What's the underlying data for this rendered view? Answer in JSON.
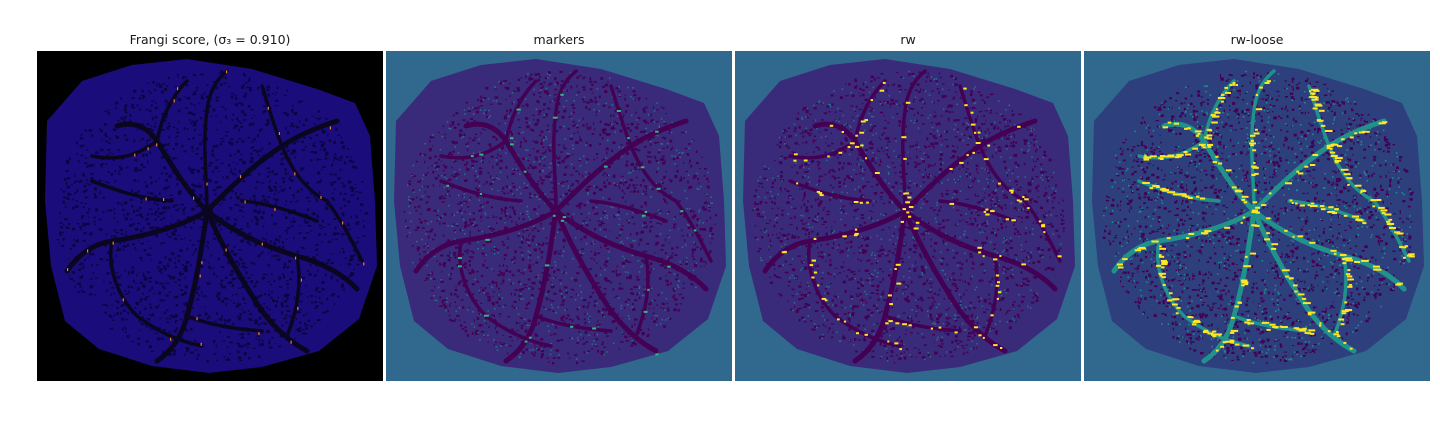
{
  "figure": {
    "panels": [
      {
        "title": "Frangi score, (σ₃ = 0.910)",
        "background_color": "#000000",
        "region_color": "#1a0c7a",
        "speckle_color": "#0a0440",
        "vessel_color": "#0b0620",
        "highlight_color": "#e8803a"
      },
      {
        "title": "markers",
        "background_color": "#31688e",
        "region_color": "#3a2a7a",
        "speckle_color": "#440154",
        "vessel_color": "#440154",
        "highlight_color": "#35b779"
      },
      {
        "title": "rw",
        "background_color": "#31688e",
        "region_color": "#3a2a7a",
        "speckle_color": "#440154",
        "vessel_color": "#440154",
        "highlight_color": "#fde725"
      },
      {
        "title": "rw-loose",
        "background_color": "#31688e",
        "region_color": "#2d3f7d",
        "speckle_color": "#440154",
        "vessel_color": "#21918c",
        "highlight_color": "#fde725"
      }
    ]
  }
}
